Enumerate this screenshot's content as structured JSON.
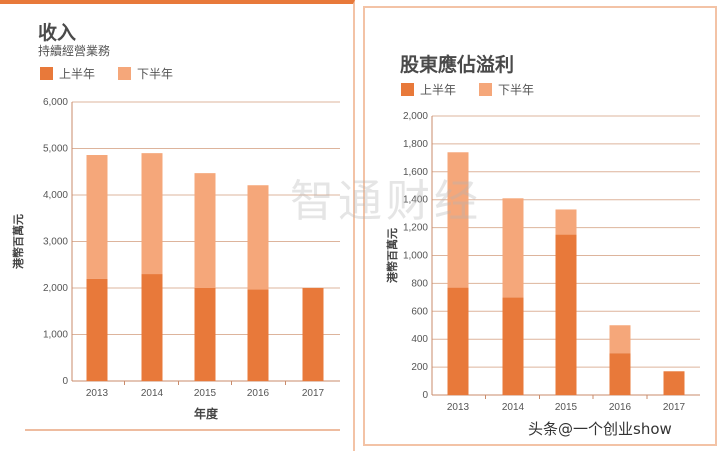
{
  "colors": {
    "first_half": "#E8793A",
    "second_half": "#F5A77A",
    "grid": "#DDB49C"
  },
  "watermark": {
    "logo_text": "智通财经",
    "footer": "头条@一个创业show"
  },
  "chart_data": [
    {
      "type": "bar",
      "stacked": true,
      "title": "收入",
      "subtitle": "持續經營業務",
      "xlabel": "年度",
      "ylabel": "港幣百萬元",
      "ylim": [
        0,
        6000
      ],
      "yticks": [
        "0",
        "1,000",
        "2,000",
        "3,000",
        "4,000",
        "5,000",
        "6,000"
      ],
      "ytick_values": [
        0,
        1000,
        2000,
        3000,
        4000,
        5000,
        6000
      ],
      "grid": true,
      "legend": "top-left",
      "categories": [
        "2013",
        "2014",
        "2015",
        "2016",
        "2017"
      ],
      "series": [
        {
          "name": "上半年",
          "values": [
            2200,
            2300,
            2000,
            1970,
            2000
          ]
        },
        {
          "name": "下半年",
          "values": [
            2660,
            2600,
            2470,
            2240,
            null
          ]
        }
      ]
    },
    {
      "type": "bar",
      "stacked": true,
      "title": "股東應佔溢利",
      "xlabel": "",
      "ylabel": "港幣百萬元",
      "ylim": [
        0,
        2000
      ],
      "yticks": [
        "0",
        "200",
        "400",
        "600",
        "800",
        "1,000",
        "1,200",
        "1,400",
        "1,600",
        "1,800",
        "2,000"
      ],
      "ytick_values": [
        0,
        200,
        400,
        600,
        800,
        1000,
        1200,
        1400,
        1600,
        1800,
        2000
      ],
      "grid": true,
      "legend": "top-left",
      "categories": [
        "2013",
        "2014",
        "2015",
        "2016",
        "2017"
      ],
      "series": [
        {
          "name": "上半年",
          "values": [
            770,
            700,
            1150,
            300,
            170
          ]
        },
        {
          "name": "下半年",
          "values": [
            970,
            710,
            180,
            200,
            null
          ]
        }
      ]
    }
  ]
}
